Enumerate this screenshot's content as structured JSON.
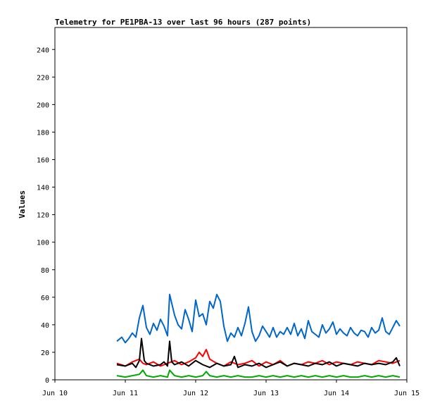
{
  "chart_data": {
    "type": "line",
    "title": "Telemetry for PE1PBA-13 over last 96 hours (287 points)",
    "ylabel": "Values",
    "xlabel": "",
    "ylim": [
      0,
      256
    ],
    "y_ticks": [
      0,
      20,
      40,
      60,
      80,
      100,
      120,
      140,
      160,
      180,
      200,
      220,
      240
    ],
    "x_ticks": [
      "Jun 10",
      "Jun 11",
      "Jun 12",
      "Jun 13",
      "Jun 14",
      "Jun 15"
    ],
    "xlim": [
      "Jun 10 00:00",
      "Jun 15 00:00"
    ],
    "x_unit": "days since Jun 10 00:00",
    "grid": false,
    "legend": "none",
    "series": [
      {
        "color": "#0066cc",
        "x": [
          0.88,
          0.95,
          1.0,
          1.05,
          1.1,
          1.15,
          1.2,
          1.25,
          1.3,
          1.35,
          1.4,
          1.45,
          1.5,
          1.55,
          1.6,
          1.63,
          1.7,
          1.75,
          1.8,
          1.85,
          1.9,
          1.95,
          2.0,
          2.05,
          2.1,
          2.15,
          2.2,
          2.25,
          2.3,
          2.35,
          2.4,
          2.45,
          2.5,
          2.55,
          2.6,
          2.65,
          2.7,
          2.75,
          2.8,
          2.85,
          2.9,
          2.95,
          3.0,
          3.05,
          3.1,
          3.15,
          3.2,
          3.25,
          3.3,
          3.35,
          3.4,
          3.45,
          3.5,
          3.55,
          3.6,
          3.65,
          3.7,
          3.75,
          3.8,
          3.85,
          3.9,
          3.95,
          4.0,
          4.05,
          4.1,
          4.15,
          4.2,
          4.25,
          4.3,
          4.35,
          4.4,
          4.45,
          4.5,
          4.55,
          4.6,
          4.65,
          4.7,
          4.75,
          4.8,
          4.85,
          4.9
        ],
        "y": [
          28,
          31,
          27,
          30,
          34,
          31,
          45,
          54,
          38,
          33,
          41,
          36,
          44,
          39,
          32,
          62,
          47,
          40,
          37,
          51,
          44,
          35,
          58,
          46,
          48,
          40,
          57,
          52,
          62,
          57,
          39,
          28,
          34,
          31,
          38,
          32,
          41,
          53,
          35,
          28,
          32,
          39,
          35,
          31,
          38,
          31,
          35,
          33,
          38,
          33,
          41,
          32,
          37,
          30,
          43,
          35,
          33,
          31,
          40,
          34,
          37,
          42,
          33,
          37,
          34,
          32,
          38,
          34,
          32,
          36,
          35,
          31,
          38,
          34,
          36,
          45,
          35,
          33,
          38,
          43,
          39
        ]
      },
      {
        "color": "#ff0000",
        "x": [
          0.88,
          1.0,
          1.1,
          1.2,
          1.25,
          1.3,
          1.4,
          1.5,
          1.6,
          1.7,
          1.8,
          1.9,
          2.0,
          2.05,
          2.1,
          2.15,
          2.2,
          2.3,
          2.4,
          2.5,
          2.6,
          2.7,
          2.8,
          2.9,
          3.0,
          3.1,
          3.2,
          3.3,
          3.4,
          3.5,
          3.6,
          3.7,
          3.8,
          3.9,
          4.0,
          4.1,
          4.2,
          4.3,
          4.4,
          4.5,
          4.6,
          4.7,
          4.8,
          4.9
        ],
        "y": [
          12,
          10,
          13,
          15,
          12,
          11,
          13,
          10,
          12,
          14,
          11,
          13,
          16,
          20,
          17,
          22,
          15,
          12,
          10,
          13,
          11,
          12,
          14,
          10,
          13,
          11,
          14,
          10,
          12,
          11,
          13,
          12,
          14,
          11,
          13,
          12,
          11,
          13,
          12,
          11,
          14,
          13,
          12,
          14
        ]
      },
      {
        "color": "#000000",
        "x": [
          0.88,
          1.0,
          1.1,
          1.15,
          1.2,
          1.23,
          1.27,
          1.3,
          1.4,
          1.5,
          1.55,
          1.6,
          1.63,
          1.66,
          1.7,
          1.8,
          1.9,
          2.0,
          2.1,
          2.2,
          2.3,
          2.4,
          2.5,
          2.55,
          2.6,
          2.7,
          2.8,
          2.9,
          3.0,
          3.1,
          3.2,
          3.3,
          3.4,
          3.5,
          3.6,
          3.7,
          3.8,
          3.9,
          4.0,
          4.1,
          4.2,
          4.3,
          4.4,
          4.5,
          4.6,
          4.7,
          4.8,
          4.85,
          4.9
        ],
        "y": [
          11,
          10,
          12,
          9,
          14,
          30,
          14,
          12,
          10,
          11,
          13,
          10,
          28,
          13,
          11,
          13,
          10,
          14,
          11,
          9,
          12,
          10,
          11,
          17,
          9,
          11,
          10,
          12,
          9,
          11,
          13,
          10,
          12,
          11,
          10,
          12,
          11,
          13,
          10,
          12,
          11,
          10,
          12,
          11,
          12,
          11,
          13,
          16,
          10
        ]
      },
      {
        "color": "#00aa00",
        "x": [
          0.88,
          1.0,
          1.1,
          1.2,
          1.25,
          1.3,
          1.4,
          1.5,
          1.6,
          1.63,
          1.7,
          1.8,
          1.9,
          2.0,
          2.1,
          2.15,
          2.2,
          2.3,
          2.4,
          2.5,
          2.6,
          2.7,
          2.8,
          2.9,
          3.0,
          3.1,
          3.2,
          3.3,
          3.4,
          3.5,
          3.6,
          3.7,
          3.8,
          3.9,
          4.0,
          4.1,
          4.2,
          4.3,
          4.4,
          4.5,
          4.6,
          4.7,
          4.8,
          4.9
        ],
        "y": [
          3,
          2,
          3,
          4,
          7,
          3,
          2,
          3,
          2,
          7,
          3,
          2,
          3,
          2,
          3,
          6,
          3,
          2,
          3,
          2,
          3,
          2,
          2,
          3,
          2,
          3,
          2,
          3,
          2,
          3,
          2,
          3,
          2,
          3,
          2,
          3,
          2,
          2,
          3,
          2,
          3,
          2,
          3,
          2
        ]
      }
    ]
  }
}
